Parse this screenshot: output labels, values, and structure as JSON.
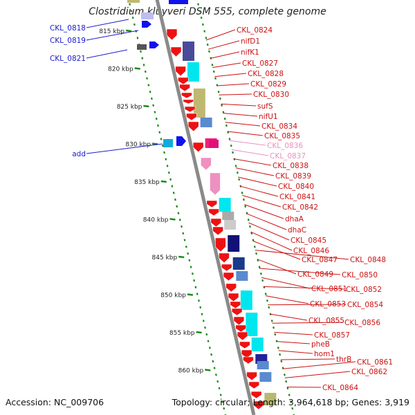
{
  "title": "Clostridium kluyveri DSM 555, complete genome",
  "accession": "Accession: NC_009706",
  "stats": "Topology: circular; Length: 3,964,618 bp; Genes: 3,919",
  "ticks": [
    "815 kbp",
    "820 kbp",
    "825 kbp",
    "830 kbp",
    "835 kbp",
    "840 kbp",
    "845 kbp",
    "850 kbp",
    "855 kbp",
    "860 kbp"
  ],
  "left_genes": [
    "CKL_0818",
    "CKL_0819",
    "CKL_0821",
    "add"
  ],
  "right_genes": [
    "CKL_0824",
    "nifD1",
    "nifK1",
    "CKL_0827",
    "CKL_0828",
    "CKL_0829",
    "CKL_0830",
    "sufS",
    "nifU1",
    "CKL_0834",
    "CKL_0835",
    "CKL_0836",
    "CKL_0837",
    "CKL_0838",
    "CKL_0839",
    "CKL_0840",
    "CKL_0841",
    "CKL_0842",
    "dhaA",
    "dhaC",
    "CKL_0845",
    "CKL_0846",
    "CKL_0847",
    "CKL_0848",
    "CKL_0849",
    "CKL_0850",
    "CKL_0851",
    "CKL_0852",
    "CKL_0853",
    "CKL_0854",
    "CKL_0855",
    "CKL_0856",
    "CKL_0857",
    "pheB",
    "hom1",
    "thrB",
    "CKL_0861",
    "CKL_0862",
    "CKL_0864"
  ],
  "colors": {
    "forward_label": "#1a1acc",
    "reverse_label": "#cc1111",
    "pseudo_label": "#e890c0",
    "gene_reverse": "#ee1111",
    "gene_forward": "#1111ee",
    "gene_pink": "#ee90c0",
    "gene_magenta": "#e0107a",
    "gc_dotted": "#1a8a1a",
    "backbone": "#8a8a8a"
  }
}
